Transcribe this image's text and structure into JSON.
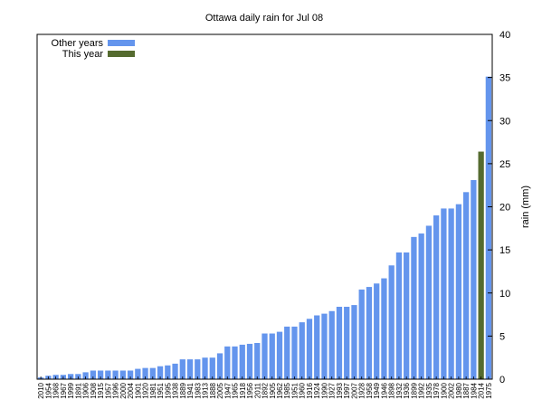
{
  "chart_data": {
    "type": "bar",
    "title": "Ottawa daily rain for Jul 08",
    "xlabel": "",
    "ylabel": "rain (mm)",
    "ylim": [
      0,
      40
    ],
    "yticks": [
      0,
      5,
      10,
      15,
      20,
      25,
      30,
      35,
      40
    ],
    "y_axis_side": "right",
    "grid": false,
    "legend_position": "top-left",
    "colors": {
      "other": "#6495ed",
      "this_year": "#556b2f"
    },
    "series": [
      {
        "name": "Other years",
        "color": "#6495ed"
      },
      {
        "name": "This year",
        "color": "#556b2f"
      }
    ],
    "highlight_category": "2014",
    "categories": [
      "2010",
      "1954",
      "1968",
      "1967",
      "1999",
      "1891",
      "1906",
      "1908",
      "1915",
      "1957",
      "1996",
      "2000",
      "2004",
      "1901",
      "1920",
      "1981",
      "1951",
      "1995",
      "1938",
      "1889",
      "1941",
      "1983",
      "1913",
      "1888",
      "2005",
      "1947",
      "1965",
      "1918",
      "1956",
      "2011",
      "1892",
      "1905",
      "1962",
      "1985",
      "1951",
      "1960",
      "1916",
      "1924",
      "1990",
      "1927",
      "1993",
      "1997",
      "2007",
      "1928",
      "1958",
      "1949",
      "1946",
      "1898",
      "1932",
      "1936",
      "1899",
      "1992",
      "1935",
      "1978",
      "1900",
      "2002",
      "1980",
      "1887",
      "1984",
      "2014",
      "1975"
    ],
    "values": [
      0.2,
      0.4,
      0.5,
      0.5,
      0.6,
      0.6,
      0.8,
      1.0,
      1.0,
      1.0,
      1.0,
      1.0,
      1.0,
      1.2,
      1.3,
      1.3,
      1.5,
      1.6,
      1.8,
      2.3,
      2.3,
      2.3,
      2.5,
      2.5,
      3.0,
      3.8,
      3.8,
      4.0,
      4.1,
      4.2,
      5.3,
      5.3,
      5.5,
      6.1,
      6.1,
      6.6,
      7.0,
      7.4,
      7.6,
      7.9,
      8.4,
      8.4,
      8.6,
      10.4,
      10.7,
      11.1,
      11.7,
      13.2,
      14.7,
      14.7,
      16.5,
      16.9,
      17.8,
      19.0,
      19.8,
      19.8,
      20.3,
      21.7,
      23.1,
      26.4,
      35.1
    ]
  }
}
